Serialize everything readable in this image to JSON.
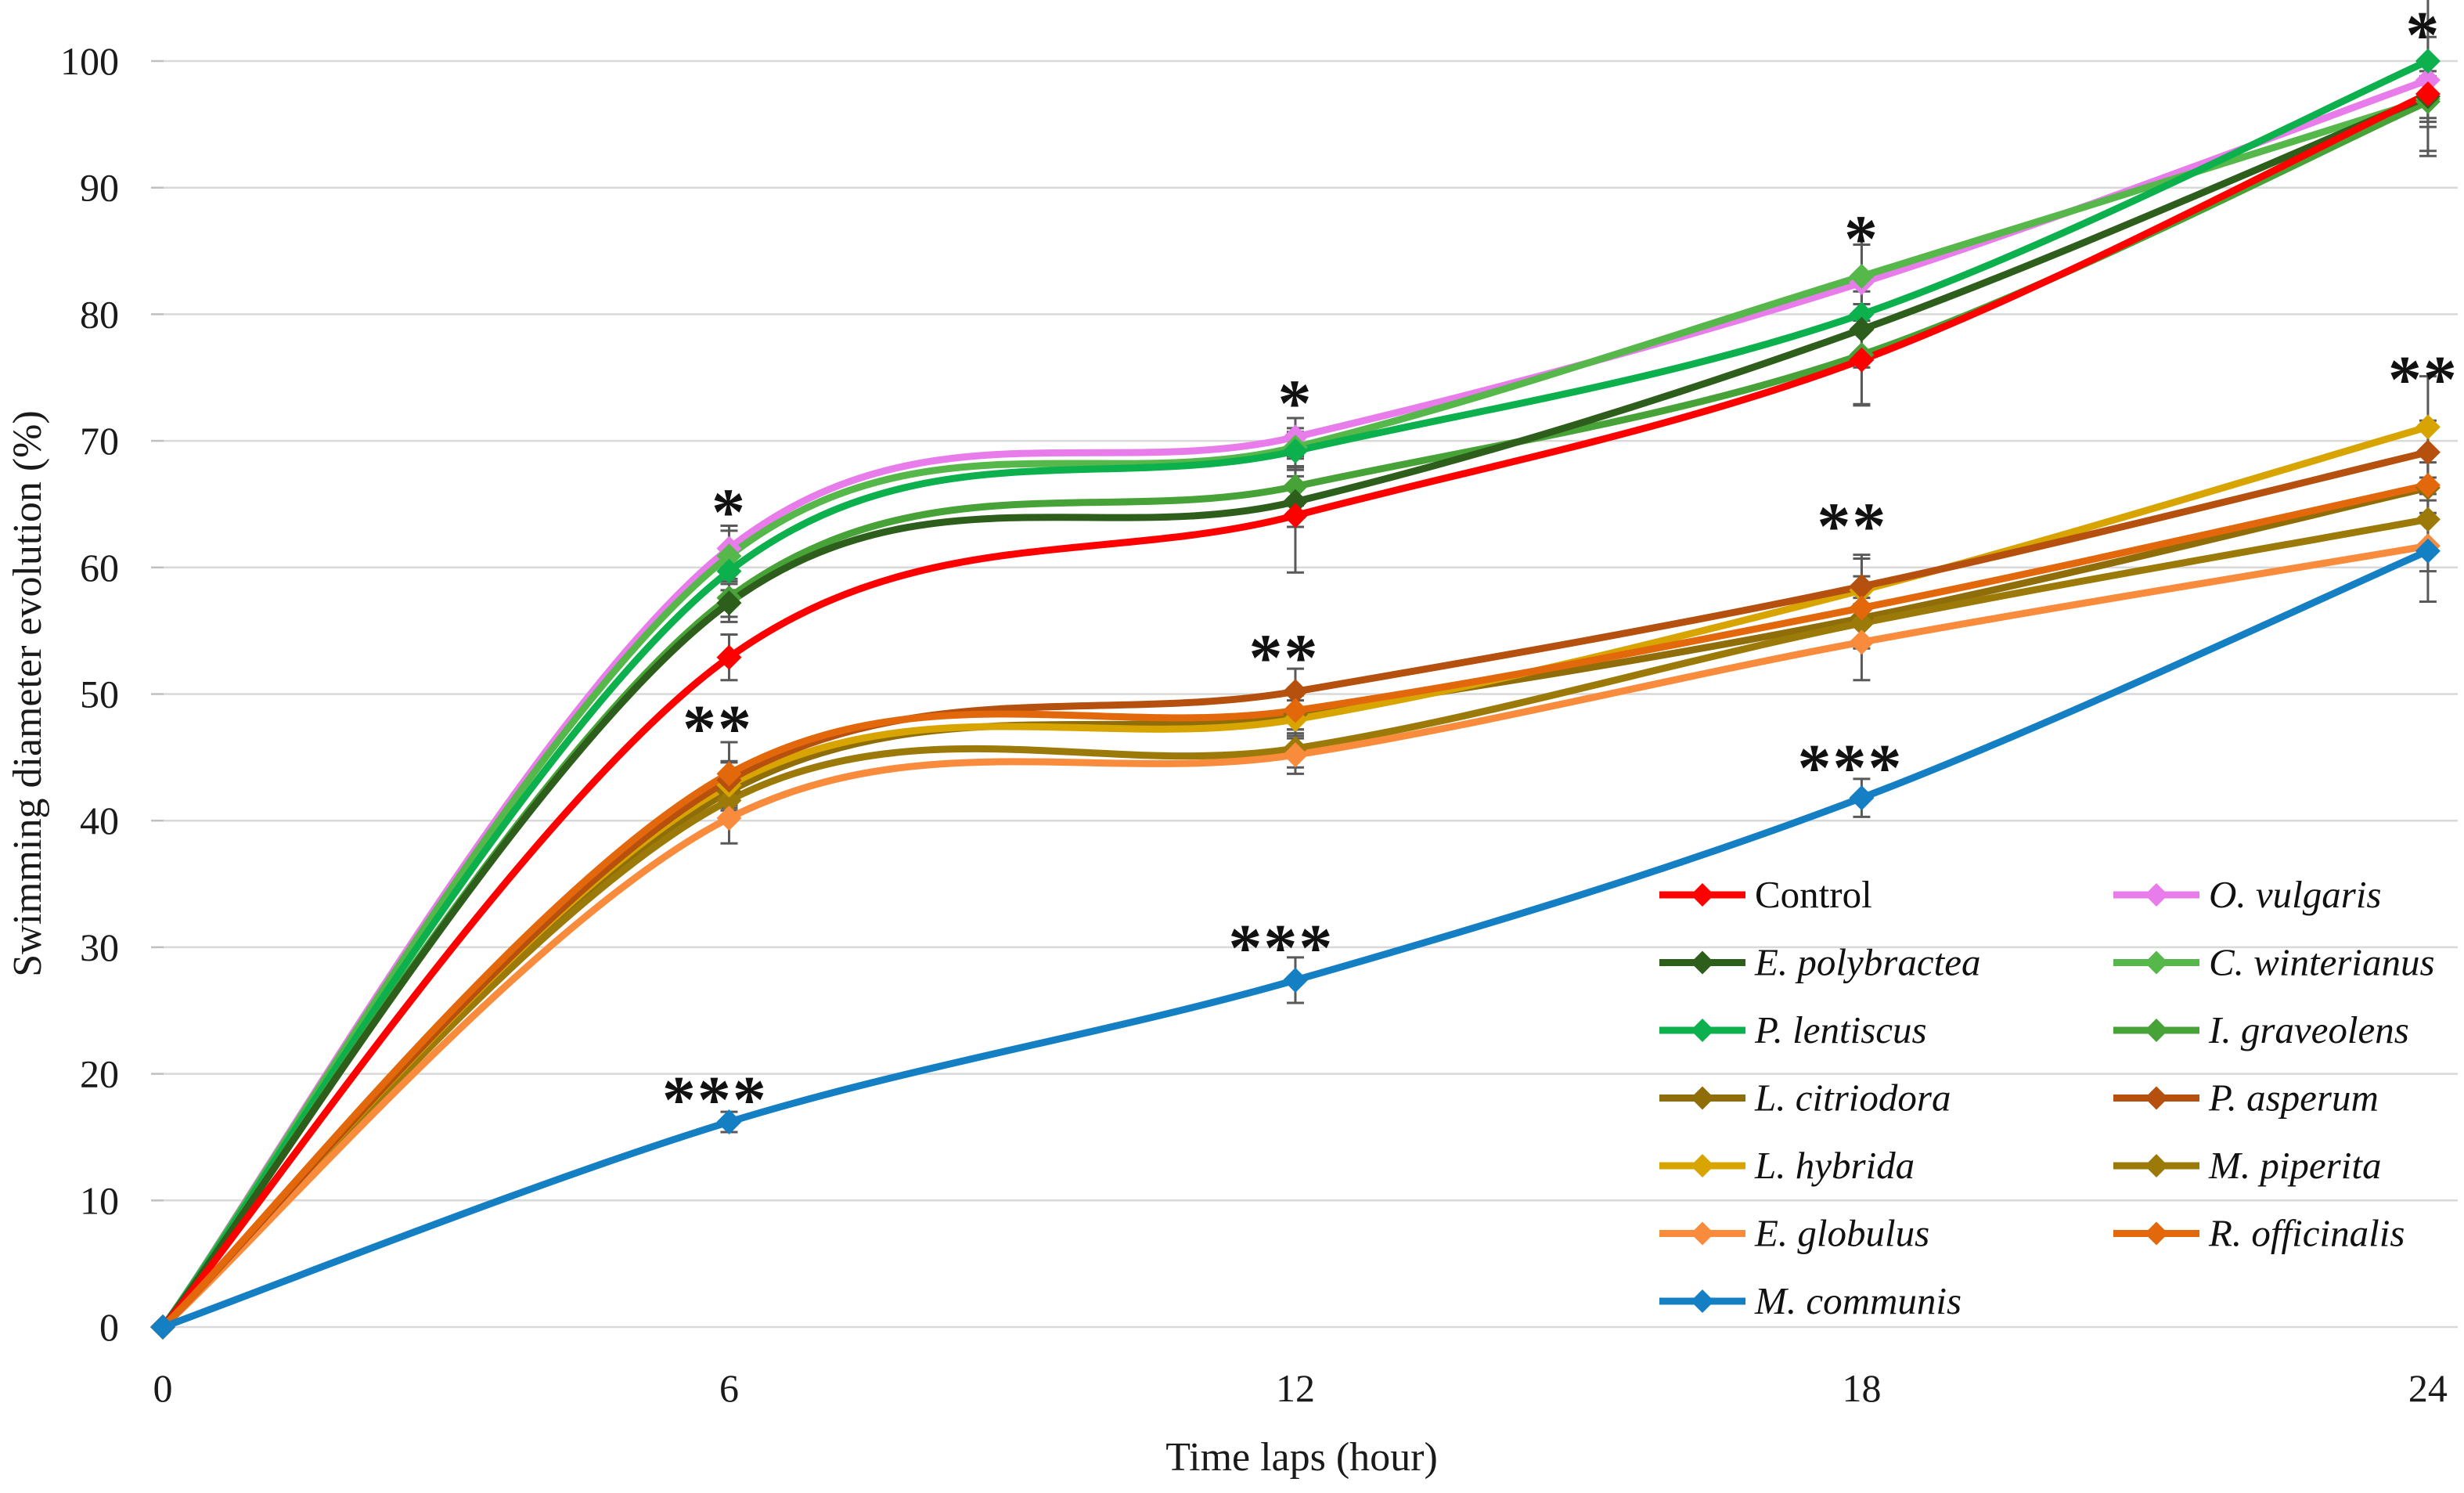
{
  "chart_data": {
    "type": "line",
    "title": "",
    "xlabel": "Time laps (hour)",
    "ylabel": "Swimming diameter evolution (%)",
    "x": [
      0,
      6,
      12,
      18,
      24
    ],
    "x_tick_labels": [
      "0",
      "6",
      "12",
      "18",
      "24"
    ],
    "y_ticks": [
      0,
      10,
      20,
      30,
      40,
      50,
      60,
      70,
      80,
      90,
      100
    ],
    "ylim": [
      0,
      100
    ],
    "xlim": [
      0,
      24
    ],
    "grid": "horizontal",
    "grid_color": "#d9d9d9",
    "error_bar_color": "#595959",
    "text_color": "#1a1a1a",
    "legend_position": "inside-lower-right",
    "marker": "diamond",
    "line_smoothing": true,
    "series": [
      {
        "name": "Control",
        "italic": false,
        "color": "#ff0000",
        "values": [
          0,
          52.9,
          64.1,
          76.4,
          97.4
        ],
        "errors": [
          0,
          1.8,
          4.5,
          3.5,
          4.5
        ]
      },
      {
        "name": "O. vulgaris",
        "italic": true,
        "color": "#e97ceb",
        "values": [
          0,
          61.5,
          70.3,
          82.5,
          98.5
        ],
        "errors": [
          0,
          1.8,
          1.5,
          3.0,
          1.5
        ]
      },
      {
        "name": "E. polybractea",
        "italic": true,
        "color": "#2e5e1b",
        "values": [
          0,
          57.2,
          65.2,
          78.8,
          97.2
        ],
        "errors": [
          0,
          1.5,
          2.0,
          3.0,
          2.0
        ]
      },
      {
        "name": "C. winterianus",
        "italic": true,
        "color": "#56b84b",
        "values": [
          0,
          60.9,
          69.5,
          83.0,
          97.0
        ],
        "errors": [
          0,
          2.0,
          1.5,
          3.5,
          1.5
        ]
      },
      {
        "name": "P. lentiscus",
        "italic": true,
        "color": "#0cb04c",
        "values": [
          0,
          59.7,
          69.2,
          80.0,
          100.0
        ],
        "errors": [
          0,
          1.5,
          1.5,
          3.0,
          7.5
        ]
      },
      {
        "name": "I. graveolens",
        "italic": true,
        "color": "#47a337",
        "values": [
          0,
          57.6,
          66.4,
          76.8,
          96.8
        ],
        "errors": [
          0,
          1.5,
          1.5,
          4.0,
          2.0
        ]
      },
      {
        "name": "L. citriodora",
        "italic": true,
        "color": "#8f6e09",
        "values": [
          0,
          42.3,
          48.4,
          56.0,
          66.3
        ],
        "errors": [
          0,
          1.5,
          1.5,
          2.0,
          2.0
        ]
      },
      {
        "name": "P. asperum",
        "italic": true,
        "color": "#b5500f",
        "values": [
          0,
          43.2,
          50.2,
          58.5,
          69.1
        ],
        "errors": [
          0,
          1.5,
          1.8,
          2.5,
          2.5
        ]
      },
      {
        "name": "L. hybrida",
        "italic": true,
        "color": "#d8a400",
        "values": [
          0,
          42.8,
          48.0,
          58.2,
          71.1
        ],
        "errors": [
          0,
          1.8,
          1.5,
          2.5,
          4.0
        ]
      },
      {
        "name": "M. piperita",
        "italic": true,
        "color": "#9c7a0a",
        "values": [
          0,
          41.6,
          45.7,
          55.6,
          63.8
        ],
        "errors": [
          0,
          1.5,
          1.5,
          2.0,
          2.0
        ]
      },
      {
        "name": "E. globulus",
        "italic": true,
        "color": "#f98b3d",
        "values": [
          0,
          40.2,
          45.2,
          54.1,
          61.7
        ],
        "errors": [
          0,
          2.0,
          1.5,
          3.0,
          2.0
        ]
      },
      {
        "name": "R. officinalis",
        "italic": true,
        "color": "#e3670b",
        "values": [
          0,
          43.7,
          48.7,
          56.8,
          66.5
        ],
        "errors": [
          0,
          2.5,
          1.5,
          2.5,
          2.5
        ]
      },
      {
        "name": "M. communis",
        "italic": true,
        "color": "#157fc4",
        "values": [
          0,
          16.2,
          27.4,
          41.8,
          61.3
        ],
        "errors": [
          0,
          0.8,
          1.8,
          1.5,
          4.0
        ]
      }
    ],
    "annotations": [
      {
        "text": "*",
        "hour": 6.0,
        "value": 65.3
      },
      {
        "text": "**",
        "hour": 5.88,
        "value": 48.2
      },
      {
        "text": "***",
        "hour": 5.85,
        "value": 18.9
      },
      {
        "text": "*",
        "hour": 12.0,
        "value": 73.9
      },
      {
        "text": "**",
        "hour": 11.88,
        "value": 53.8
      },
      {
        "text": "***",
        "hour": 11.85,
        "value": 30.9
      },
      {
        "text": "*",
        "hour": 18.0,
        "value": 86.9
      },
      {
        "text": "**",
        "hour": 17.9,
        "value": 64.2
      },
      {
        "text": "***",
        "hour": 17.88,
        "value": 45.1
      },
      {
        "text": "*",
        "hour": 23.95,
        "value": 103.0
      },
      {
        "text": "**",
        "hour": 23.95,
        "value": 75.8
      }
    ]
  }
}
